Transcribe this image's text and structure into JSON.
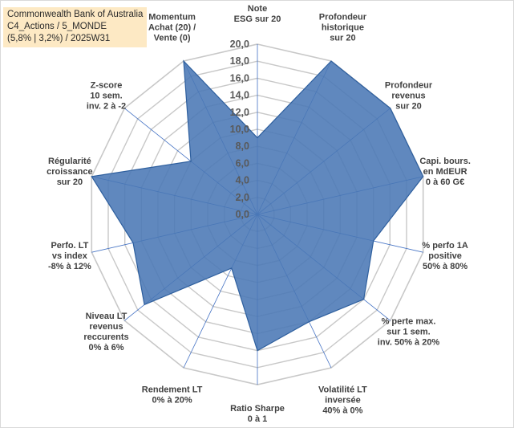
{
  "header": {
    "line1": "Commonwealth Bank of Australia",
    "line2": "C4_Actions / 5_MONDE",
    "line3": "(5,8% | 3,2%) / 2025W31"
  },
  "colors": {
    "fill": "#4a78b5",
    "stroke": "#2e5f9e",
    "grid": "#c8c8c8",
    "spoke": "#4472c4",
    "header_bg": "#fde9c4"
  },
  "chart_data": {
    "type": "radar",
    "title": "",
    "rlim": [
      0,
      20
    ],
    "grid": true,
    "tick_labels": [
      "0,0",
      "2,0",
      "4,0",
      "6,0",
      "8,0",
      "10,0",
      "12,0",
      "14,0",
      "16,0",
      "18,0",
      "20,0"
    ],
    "categories": [
      [
        "Note",
        "ESG sur 20"
      ],
      [
        "Profondeur",
        "historique",
        "sur 20"
      ],
      [
        "Profondeur",
        "revenus",
        "sur 20"
      ],
      [
        "Capi. bours.",
        "en MdEUR",
        "0 à 60 G€"
      ],
      [
        "% perfo 1A",
        "positive",
        "50% à 80%"
      ],
      [
        "% perte max.",
        "sur 1 sem.",
        "inv. 50% à 20%"
      ],
      [
        "Volatilité LT",
        "inversée",
        "40% à 0%"
      ],
      [
        "Ratio Sharpe",
        "0 à 1"
      ],
      [
        "Rendement LT",
        "0% à 20%"
      ],
      [
        "Niveau LT",
        "revenus",
        "reccurents",
        "0% à 6%"
      ],
      [
        "Perfo. LT",
        "vs index",
        "-8% à 12%"
      ],
      [
        "Régularité",
        "croissance",
        "sur 20"
      ],
      [
        "Z-score",
        "10 sem.",
        "inv. 2 à -2"
      ],
      [
        "Momentum",
        "Achat (20) /",
        "Vente (0)"
      ]
    ],
    "series": [
      {
        "values": [
          9,
          20,
          20,
          20,
          14,
          16,
          14,
          16,
          7,
          17,
          15,
          20,
          10,
          20
        ]
      }
    ]
  }
}
